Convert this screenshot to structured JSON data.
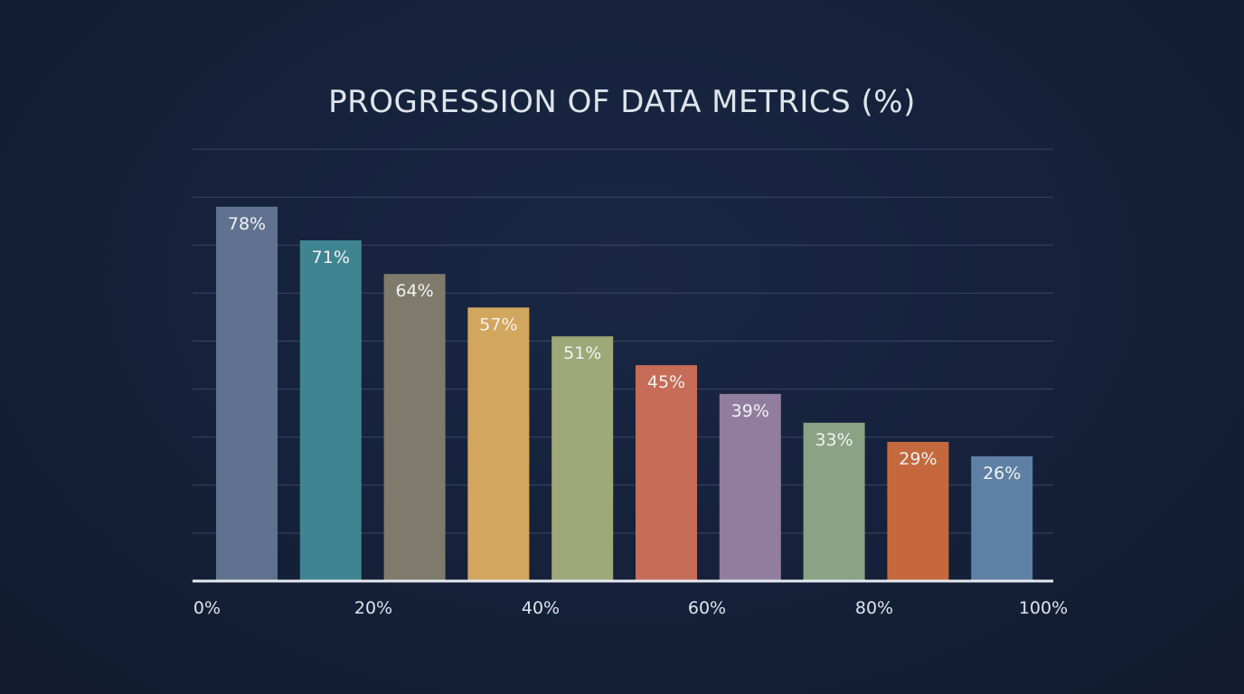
{
  "chart_data": {
    "type": "bar",
    "title": "PROGRESSION OF DATA METRICS (%)",
    "xlabel": "",
    "ylabel": "",
    "values": [
      78,
      71,
      64,
      57,
      51,
      45,
      39,
      33,
      29,
      26
    ],
    "value_labels": [
      "78%",
      "71%",
      "64%",
      "57%",
      "51%",
      "45%",
      "39%",
      "33%",
      "29%",
      "26%"
    ],
    "x_tick_labels": [
      "0%",
      "20%",
      "40%",
      "60%",
      "80%",
      "100%"
    ],
    "ylim": [
      0,
      90
    ],
    "grid": true,
    "colors": [
      "#5f7290",
      "#3f8591",
      "#7e7a6c",
      "#d3a65f",
      "#9fa879",
      "#c66c57",
      "#917e9f",
      "#89a384",
      "#c5683e",
      "#5e80a4"
    ]
  }
}
